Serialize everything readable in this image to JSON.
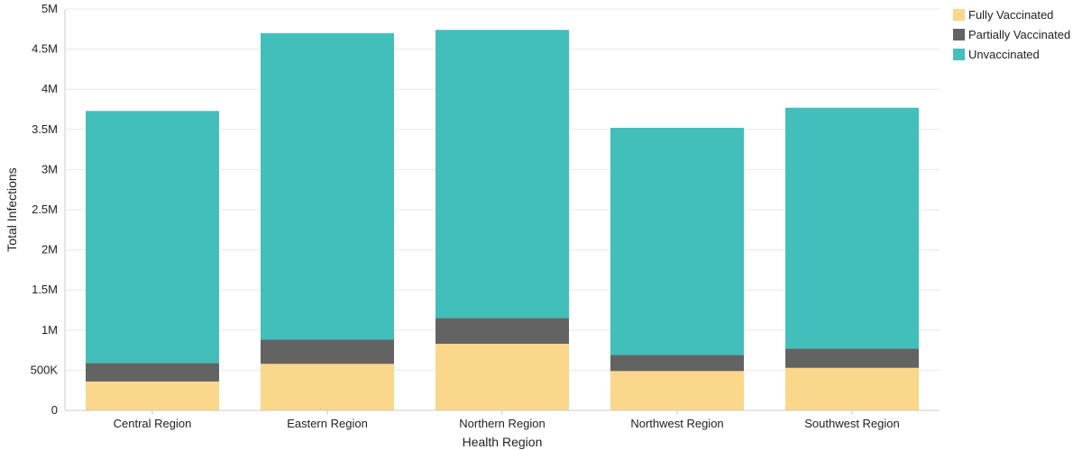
{
  "chart_data": {
    "type": "bar",
    "stacked": true,
    "xlabel": "Health Region",
    "ylabel": "Total Infections",
    "ylim": [
      0,
      5000000
    ],
    "yticks": [
      {
        "value": 0,
        "label": "0"
      },
      {
        "value": 500000,
        "label": "500K"
      },
      {
        "value": 1000000,
        "label": "1M"
      },
      {
        "value": 1500000,
        "label": "1.5M"
      },
      {
        "value": 2000000,
        "label": "2M"
      },
      {
        "value": 2500000,
        "label": "2.5M"
      },
      {
        "value": 3000000,
        "label": "3M"
      },
      {
        "value": 3500000,
        "label": "3.5M"
      },
      {
        "value": 4000000,
        "label": "4M"
      },
      {
        "value": 4500000,
        "label": "4.5M"
      },
      {
        "value": 5000000,
        "label": "5M"
      }
    ],
    "categories": [
      "Central Region",
      "Eastern Region",
      "Northern Region",
      "Northwest Region",
      "Southwest Region"
    ],
    "series": [
      {
        "name": "Fully Vaccinated",
        "color": "#fad78a",
        "values": [
          360000,
          580000,
          830000,
          490000,
          530000
        ]
      },
      {
        "name": "Partially Vaccinated",
        "color": "#636363",
        "values": [
          230000,
          300000,
          320000,
          200000,
          240000
        ]
      },
      {
        "name": "Unvaccinated",
        "color": "#42bfbb",
        "values": [
          3140000,
          3820000,
          3590000,
          2830000,
          3000000
        ]
      }
    ],
    "grid": true,
    "legend_position": "top-right"
  }
}
